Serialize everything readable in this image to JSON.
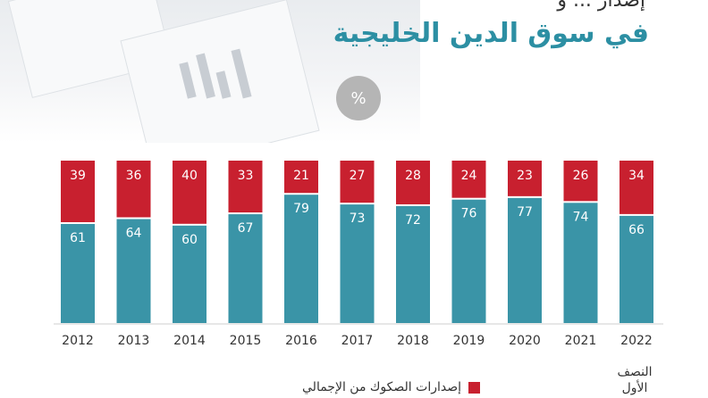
{
  "header": {
    "title_partial": "إصدار ... و",
    "title": "في سوق الدين الخليجية",
    "unit": "%"
  },
  "legend": {
    "sukuk_label": "إصدارات الصكوك من الإجمالي"
  },
  "footnote": "النصف الأول",
  "colors": {
    "sukuk": "#c8202f",
    "other": "#3a94a7",
    "title": "#2c8fa3"
  },
  "chart_data": {
    "type": "bar",
    "stacked": true,
    "categories": [
      "2012",
      "2013",
      "2014",
      "2015",
      "2016",
      "2017",
      "2018",
      "2019",
      "2020",
      "2021",
      "2022"
    ],
    "series": [
      {
        "values": [
          61,
          64,
          60,
          67,
          79,
          73,
          72,
          76,
          77,
          74,
          66
        ]
      },
      {
        "name": "إصدارات الصكوك من الإجمالي",
        "values": [
          39,
          36,
          40,
          33,
          21,
          27,
          28,
          24,
          23,
          26,
          34
        ]
      }
    ],
    "ylim": [
      0,
      100
    ],
    "unit": "%",
    "grid": false
  }
}
